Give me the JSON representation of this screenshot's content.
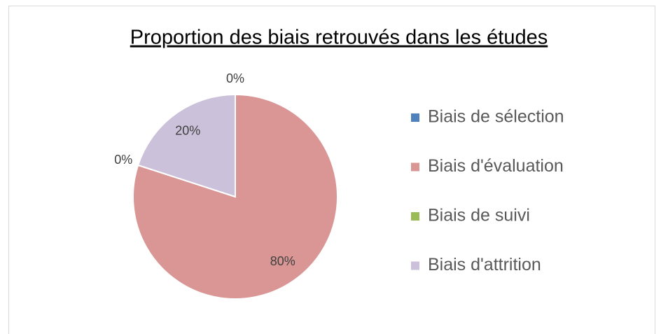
{
  "chart_data": {
    "type": "pie",
    "title": "Proportion des biais retrouvés dans les études",
    "categories": [
      "Biais de sélection",
      "Biais d'évaluation",
      "Biais de suivi",
      "Biais d'attrition"
    ],
    "values": [
      0,
      80,
      0,
      20
    ],
    "value_labels": [
      "0%",
      "80%",
      "0%",
      "20%"
    ],
    "colors": [
      "#4f81bd",
      "#d99694",
      "#9bbb59",
      "#ccc1da"
    ],
    "legend": "right"
  }
}
